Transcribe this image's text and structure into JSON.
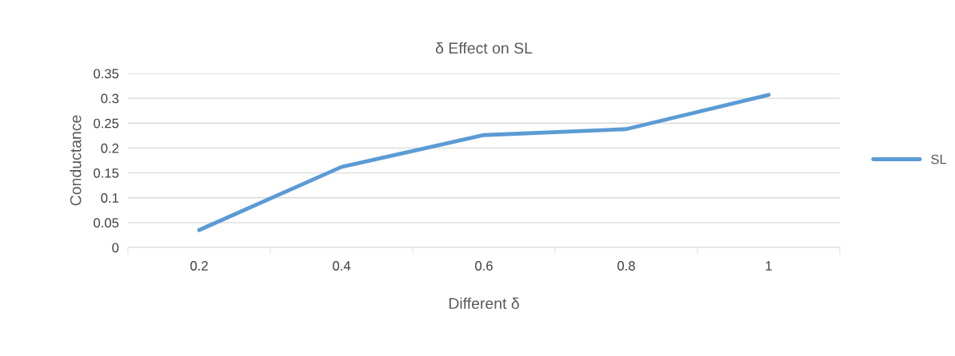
{
  "chart_data": {
    "type": "line",
    "title": "δ Effect on SL",
    "xlabel": "Different δ",
    "ylabel": "Conductance",
    "categories": [
      "0.2",
      "0.4",
      "0.6",
      "0.8",
      "1"
    ],
    "series": [
      {
        "name": "SL",
        "color": "#5b9bd5",
        "values": [
          0.035,
          0.162,
          0.226,
          0.238,
          0.307
        ]
      }
    ],
    "ylim": [
      0,
      0.35
    ],
    "yticks": [
      0,
      0.05,
      0.1,
      0.15,
      0.2,
      0.25,
      0.3,
      0.35
    ],
    "grid": "y",
    "legend": "right",
    "marker": "none",
    "line_style": "solid"
  }
}
